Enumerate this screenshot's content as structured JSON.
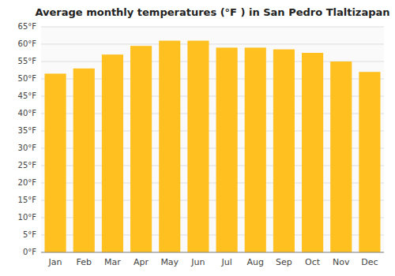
{
  "chart_data": {
    "type": "bar",
    "title": "Average monthly temperatures (°F ) in San Pedro Tlaltizapan",
    "categories": [
      "Jan",
      "Feb",
      "Mar",
      "Apr",
      "May",
      "Jun",
      "Jul",
      "Aug",
      "Sep",
      "Oct",
      "Nov",
      "Dec"
    ],
    "values": [
      51.5,
      53.0,
      57.0,
      59.5,
      61.0,
      61.0,
      59.0,
      59.0,
      58.5,
      57.5,
      55.0,
      52.0
    ],
    "color": "#FFC020",
    "ylim": [
      0,
      65
    ],
    "yticks": [
      {
        "value": 0,
        "label": "0°F"
      },
      {
        "value": 5,
        "label": "5°F"
      },
      {
        "value": 10,
        "label": "10°F"
      },
      {
        "value": 15,
        "label": "15°F"
      },
      {
        "value": 20,
        "label": "20°F"
      },
      {
        "value": 25,
        "label": "25°F"
      },
      {
        "value": 30,
        "label": "30°F"
      },
      {
        "value": 35,
        "label": "35°F"
      },
      {
        "value": 40,
        "label": "40°F"
      },
      {
        "value": 45,
        "label": "45°F"
      },
      {
        "value": 50,
        "label": "50°F"
      },
      {
        "value": 55,
        "label": "55°F"
      },
      {
        "value": 60,
        "label": "60°F"
      },
      {
        "value": 65,
        "label": "65°F"
      }
    ],
    "grid": true
  }
}
